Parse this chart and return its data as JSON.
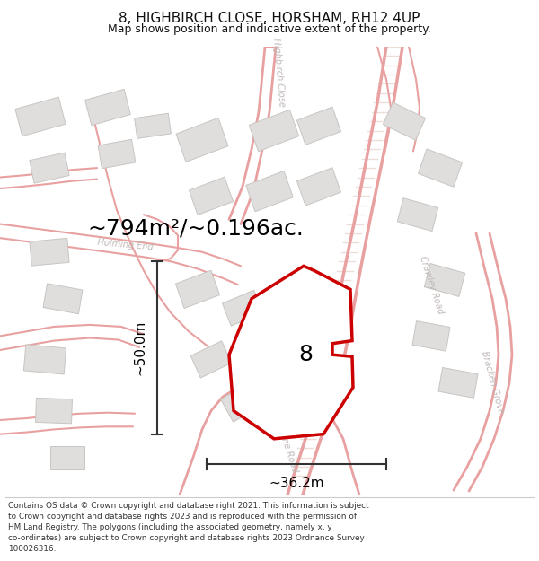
{
  "title": "8, HIGHBIRCH CLOSE, HORSHAM, RH12 4UP",
  "subtitle": "Map shows position and indicative extent of the property.",
  "area_label": "~794m²/~0.196ac.",
  "width_label": "~36.2m",
  "height_label": "~50.0m",
  "plot_number": "8",
  "footer_lines": [
    "Contains OS data © Crown copyright and database right 2021. This information is subject",
    "to Crown copyright and database rights 2023 and is reproduced with the permission of",
    "HM Land Registry. The polygons (including the associated geometry, namely x, y",
    "co-ordinates) are subject to Crown copyright and database rights 2023 Ordnance Survey",
    "100026316."
  ],
  "map_bg": "#f7f6f4",
  "road_color": "#e8a0a0",
  "road_fill": "#f0d8d8",
  "building_color": "#e0dedd",
  "building_edge": "#c8c5c2",
  "plot_color": "#cc0000",
  "plot_fill": "#ffffff",
  "label_road_color": "#c0b8b8",
  "measure_color": "#444444",
  "title_color": "#111111",
  "footer_color": "#333333",
  "area_label_fontsize": 18,
  "plot_label_fontsize": 18,
  "measure_fontsize": 11,
  "title_fontsize": 11,
  "subtitle_fontsize": 9
}
